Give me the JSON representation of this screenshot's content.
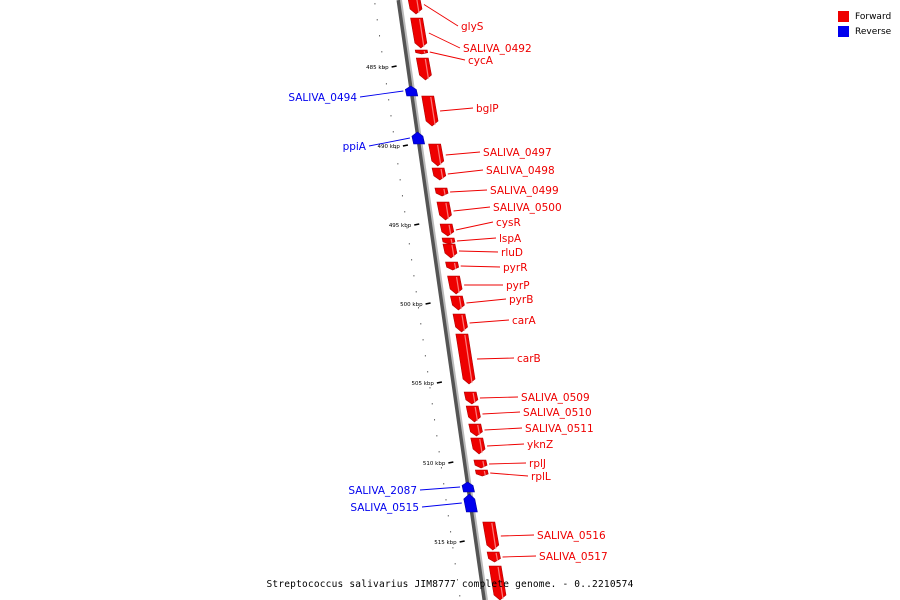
{
  "caption": "Streptococcus salivarius JIM8777 complete genome. - 0..2210574",
  "legend": {
    "forward": {
      "label": "Forward",
      "color": "#ee0000"
    },
    "reverse": {
      "label": "Reverse",
      "color": "#0000ee"
    }
  },
  "colors": {
    "forward": "#ee0000",
    "reverse": "#0000ee",
    "backbone": "#888888"
  },
  "ruler": [
    {
      "label": "485 kbp"
    },
    {
      "label": "490 kbp"
    },
    {
      "label": "495 kbp"
    },
    {
      "label": "500 kbp"
    },
    {
      "label": "505 kbp"
    },
    {
      "label": "510 kbp"
    },
    {
      "label": "515 kbp"
    }
  ],
  "genes": [
    {
      "name": "glyS",
      "strand": "forward"
    },
    {
      "name": "SALIVA_0492",
      "strand": "forward"
    },
    {
      "name": "cycA",
      "strand": "forward"
    },
    {
      "name": "SALIVA_0494",
      "strand": "reverse"
    },
    {
      "name": "bglP",
      "strand": "forward"
    },
    {
      "name": "ppiA",
      "strand": "reverse"
    },
    {
      "name": "SALIVA_0497",
      "strand": "forward"
    },
    {
      "name": "SALIVA_0498",
      "strand": "forward"
    },
    {
      "name": "SALIVA_0499",
      "strand": "forward"
    },
    {
      "name": "SALIVA_0500",
      "strand": "forward"
    },
    {
      "name": "cysR",
      "strand": "forward"
    },
    {
      "name": "lspA",
      "strand": "forward"
    },
    {
      "name": "rluD",
      "strand": "forward"
    },
    {
      "name": "pyrR",
      "strand": "forward"
    },
    {
      "name": "pyrP",
      "strand": "forward"
    },
    {
      "name": "pyrB",
      "strand": "forward"
    },
    {
      "name": "carA",
      "strand": "forward"
    },
    {
      "name": "carB",
      "strand": "forward"
    },
    {
      "name": "SALIVA_0509",
      "strand": "forward"
    },
    {
      "name": "SALIVA_0510",
      "strand": "forward"
    },
    {
      "name": "SALIVA_0511",
      "strand": "forward"
    },
    {
      "name": "yknZ",
      "strand": "forward"
    },
    {
      "name": "rplJ",
      "strand": "forward"
    },
    {
      "name": "rplL",
      "strand": "forward"
    },
    {
      "name": "SALIVA_2087",
      "strand": "reverse"
    },
    {
      "name": "SALIVA_0515",
      "strand": "reverse"
    },
    {
      "name": "SALIVA_0516",
      "strand": "forward"
    },
    {
      "name": "SALIVA_0517",
      "strand": "forward"
    }
  ]
}
